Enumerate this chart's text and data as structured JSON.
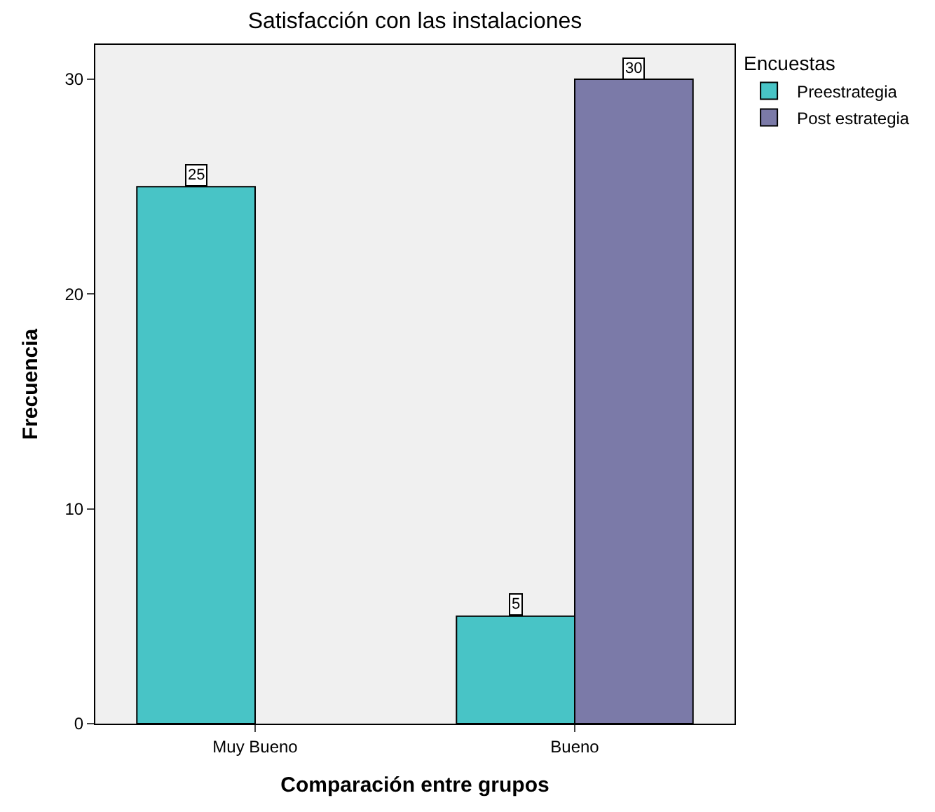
{
  "chart_data": {
    "type": "bar",
    "title": "Satisfacción con las instalaciones",
    "xlabel": "Comparación entre grupos",
    "ylabel": "Frecuencia",
    "legend_title": "Encuestas",
    "categories": [
      "Muy Bueno",
      "Bueno"
    ],
    "series": [
      {
        "name": "Preestrategia",
        "color": "#48c4c6",
        "values": [
          25,
          5
        ]
      },
      {
        "name": "Post estrategia",
        "color": "#7b7aa8",
        "values": [
          null,
          30
        ]
      }
    ],
    "ylim": [
      0,
      31.6
    ],
    "yticks": [
      0,
      10,
      20,
      30
    ],
    "grid": false,
    "legend": "top right",
    "data_labels": true
  }
}
